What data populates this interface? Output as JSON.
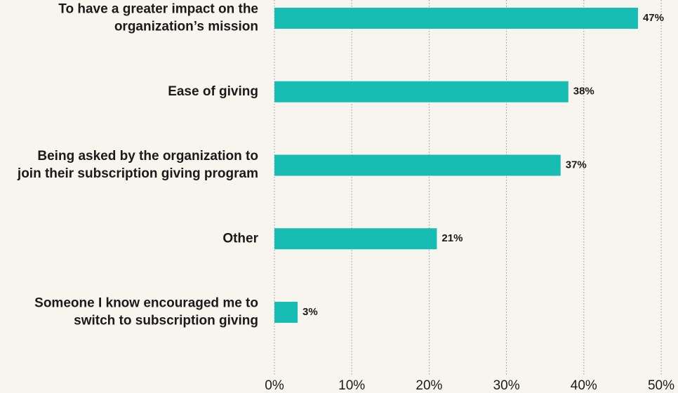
{
  "chart_data": {
    "type": "bar",
    "orientation": "horizontal",
    "categories": [
      [
        "To have a greater impact on the",
        "organization’s mission"
      ],
      [
        "Ease of giving"
      ],
      [
        "Being asked by the organization to",
        "join their subscription giving program"
      ],
      [
        "Other"
      ],
      [
        "Someone I know encouraged me to",
        "switch to subscription giving"
      ]
    ],
    "values": [
      47,
      38,
      37,
      21,
      3
    ],
    "value_labels": [
      "47%",
      "38%",
      "37%",
      "21%",
      "3%"
    ],
    "color": "#17bdb3",
    "xlim": [
      0,
      50
    ],
    "xticks": [
      {
        "value": 0,
        "label": "0%"
      },
      {
        "value": 10,
        "label": "10%"
      },
      {
        "value": 20,
        "label": "20%"
      },
      {
        "value": 30,
        "label": "30%"
      },
      {
        "value": 40,
        "label": "40%"
      },
      {
        "value": 50,
        "label": "50%"
      }
    ],
    "grid": true
  }
}
